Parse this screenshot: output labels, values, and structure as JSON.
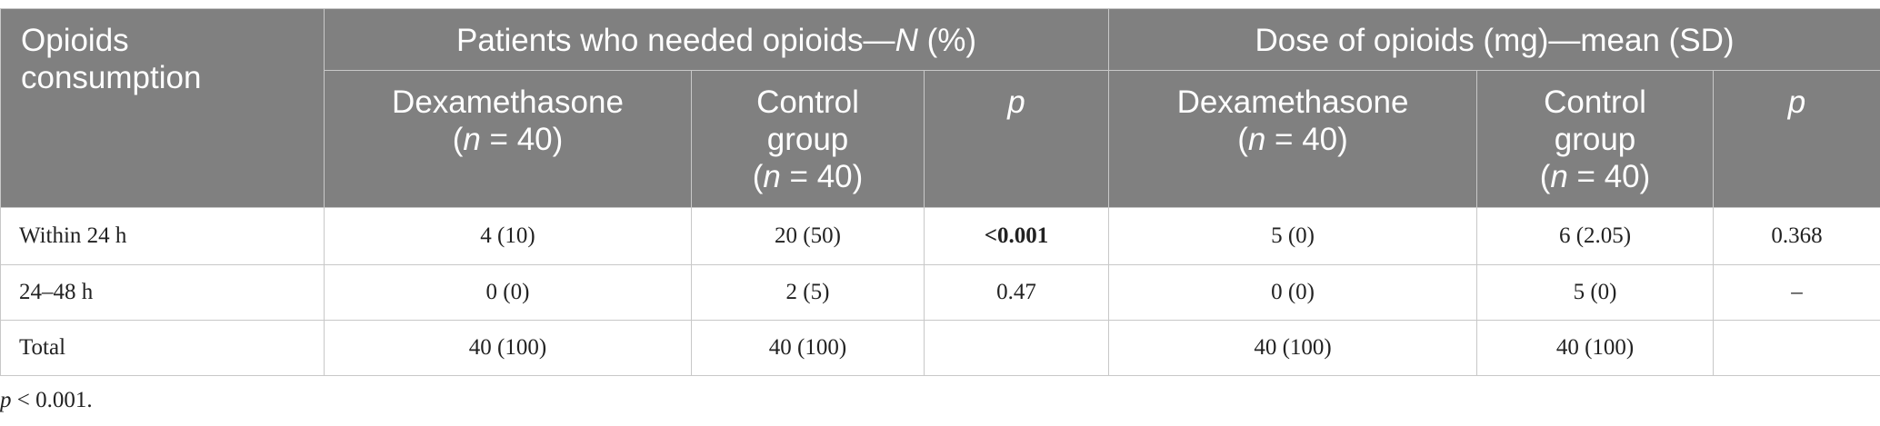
{
  "table": {
    "stub_header": "Opioids consumption",
    "groups": [
      {
        "pre": "Patients who needed opioids—",
        "italic": "N",
        "post": " (%)"
      },
      {
        "pre": "Dose of opioids (mg)—mean (SD)",
        "italic": "",
        "post": ""
      }
    ],
    "subheaders": {
      "dex": {
        "name": "Dexamethasone",
        "n_italic": "n",
        "n_rest": " = 40)"
      },
      "ctrl": {
        "name_line1": "Control",
        "name_line2": "group",
        "n_italic": "n",
        "n_rest": " = 40)"
      },
      "p": "p"
    },
    "rows": [
      {
        "label": "Within 24 h",
        "cells": [
          "4 (10)",
          "20 (50)",
          "<0.001",
          "5 (0)",
          "6 (2.05)",
          "0.368"
        ]
      },
      {
        "label": "24–48 h",
        "cells": [
          "0 (0)",
          "2 (5)",
          "0.47",
          "0 (0)",
          "5 (0)",
          "–"
        ]
      },
      {
        "label": "Total",
        "cells": [
          "40 (100)",
          "40 (100)",
          "",
          "40 (100)",
          "40 (100)",
          ""
        ]
      }
    ]
  },
  "footnote": {
    "p_italic": "p",
    "rest": " < 0.001."
  }
}
